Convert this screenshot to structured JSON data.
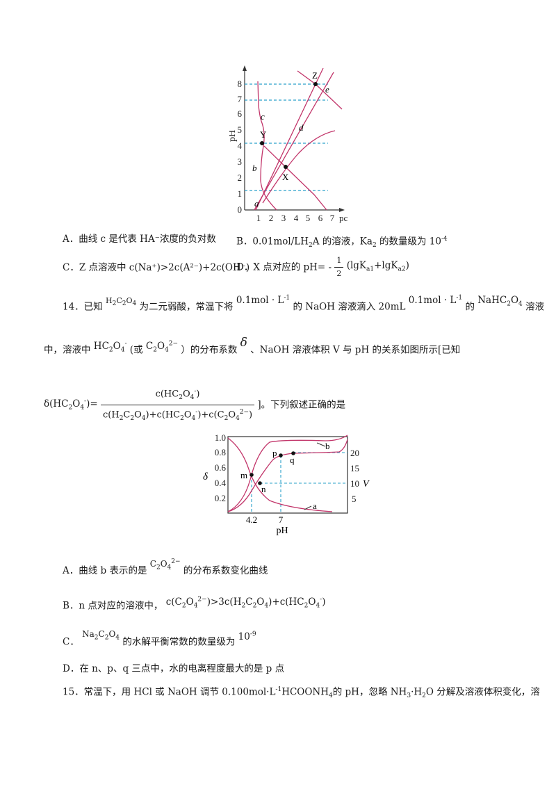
{
  "figure1": {
    "ylabel": "pH",
    "xlabel": "pc",
    "yticks": [
      "0",
      "1",
      "2",
      "3",
      "4",
      "5",
      "6",
      "7",
      "8"
    ],
    "xticks": [
      "1",
      "2",
      "3",
      "4",
      "5",
      "6",
      "7"
    ],
    "curve_labels": [
      "a",
      "b",
      "c",
      "d",
      "e"
    ],
    "points": [
      "X",
      "Y",
      "Z"
    ]
  },
  "q13_options": {
    "A": "A．曲线 c 是代表 HA⁻浓度的负对数",
    "B_pre": "B．0.01mol/LH",
    "B_mid": "A 的溶液，Ka",
    "B_post": "的数量级为 10",
    "B_exp": "-4",
    "C": "C．Z 点溶液中 c(Na⁺)>2c(A²⁻)+2c(OH⁻)",
    "D_pre": "D．X 点对应的 pH=",
    "D_frac_num": "1",
    "D_frac_den": "2",
    "D_post": "(lgK",
    "D_sub1": "a1",
    "D_mid": "+lgK",
    "D_sub2": "a2",
    "D_end": ")"
  },
  "q14": {
    "line1_a": "14．已知",
    "line1_b": "为二元弱酸，常温下将",
    "line1_c": "的 NaOH 溶液滴入 20mL",
    "line1_d": "的",
    "line1_e": "溶液",
    "line2_a": "中，溶液中",
    "line2_b": "(或",
    "line2_c": "）的分布系数",
    "line2_d": "、NaOH 溶液体积 V 与 pH 的关系如图所示[已知",
    "line3_end": "]。下列叙述正确的是",
    "conc": "0.1mol · L",
    "conc_exp": "-1"
  },
  "figure2": {
    "ylabel": "δ",
    "y2label": "V",
    "xlabel": "pH",
    "yticks": [
      "1.0",
      "0.8",
      "0.6",
      "0.4",
      "0.2"
    ],
    "y2ticks": [
      "20",
      "15",
      "10",
      "5"
    ],
    "xticks": [
      "4.2",
      "7"
    ],
    "curve_labels": [
      "a",
      "b"
    ],
    "points": [
      "m",
      "n",
      "p",
      "q"
    ]
  },
  "q14_options": {
    "A_pre": "A．曲线 b 表示的是",
    "A_post": "的分布系数变化曲线",
    "B_pre": "B．n 点对应的溶液中，",
    "C_pre": "C．",
    "C_post": "的水解平衡常数的数量级为",
    "C_val": "10",
    "C_exp": "-9",
    "D": "D．在 n、p、q 三点中，水的电离程度最大的是 p 点"
  },
  "q15": {
    "text_a": "15．常温下，用 HCl 或 NaOH 调节 0.100mol·L",
    "text_exp": "-1",
    "text_b": "HCOONH",
    "text_sub": "4",
    "text_c": "的 pH，忽略 NH",
    "text_sub2": "3",
    "text_d": "·H",
    "text_sub3": "2",
    "text_e": "O 分解及溶液体积变化，溶"
  }
}
